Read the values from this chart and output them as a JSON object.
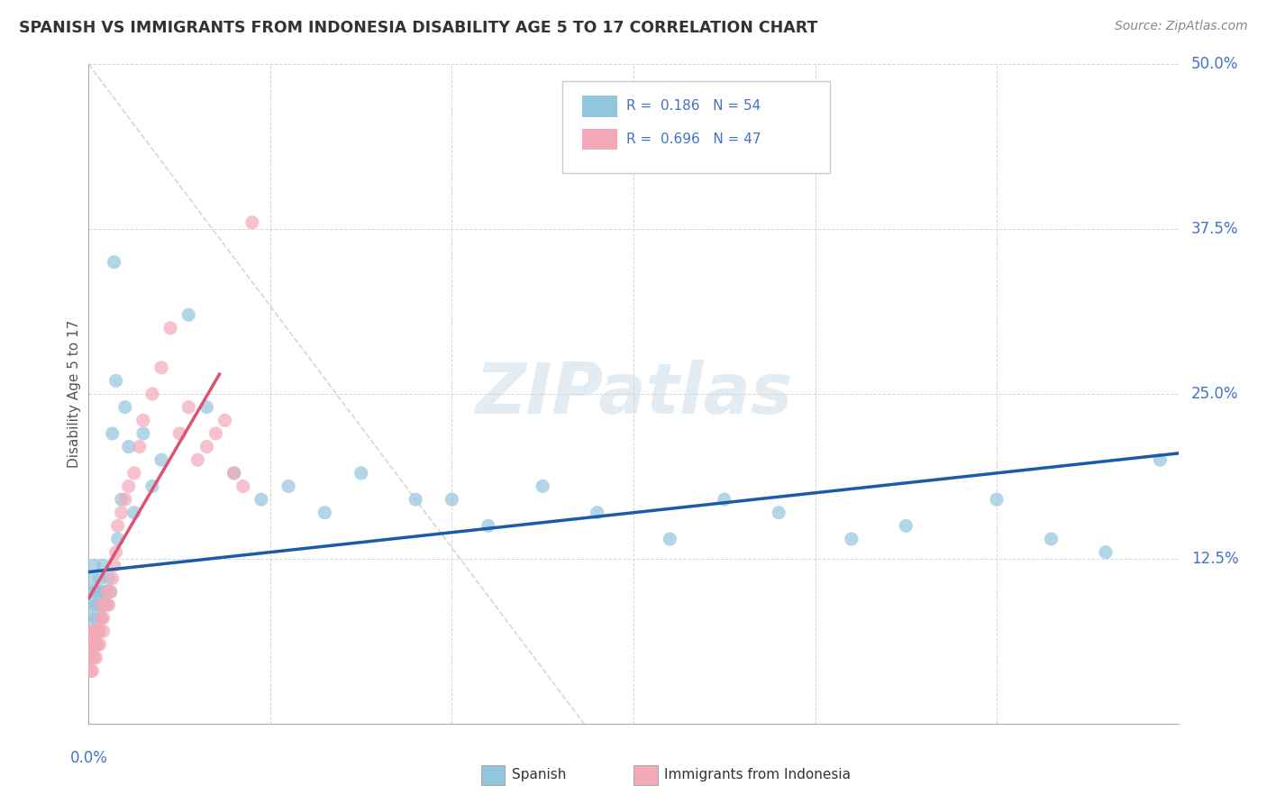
{
  "title": "SPANISH VS IMMIGRANTS FROM INDONESIA DISABILITY AGE 5 TO 17 CORRELATION CHART",
  "source": "Source: ZipAtlas.com",
  "ylabel": "Disability Age 5 to 17",
  "xmin": 0.0,
  "xmax": 0.6,
  "ymin": 0.0,
  "ymax": 0.5,
  "xticks": [
    0.0,
    0.1,
    0.2,
    0.3,
    0.4,
    0.5,
    0.6
  ],
  "yticks": [
    0.0,
    0.125,
    0.25,
    0.375,
    0.5
  ],
  "spanish_R": 0.186,
  "spanish_N": 54,
  "indonesia_R": 0.696,
  "indonesia_N": 47,
  "spanish_color": "#92c5de",
  "indonesia_color": "#f4a9b8",
  "spanish_line_color": "#1a5ca8",
  "indonesia_line_color": "#e05070",
  "watermark": "ZIPatlas",
  "background_color": "#ffffff",
  "legend_text_color": "#4472c4",
  "spanish_x": [
    0.001,
    0.001,
    0.002,
    0.002,
    0.002,
    0.003,
    0.003,
    0.003,
    0.004,
    0.004,
    0.005,
    0.005,
    0.006,
    0.006,
    0.007,
    0.007,
    0.008,
    0.008,
    0.009,
    0.01,
    0.011,
    0.012,
    0.013,
    0.014,
    0.015,
    0.016,
    0.018,
    0.02,
    0.022,
    0.025,
    0.03,
    0.035,
    0.04,
    0.055,
    0.065,
    0.08,
    0.095,
    0.11,
    0.13,
    0.15,
    0.18,
    0.2,
    0.22,
    0.25,
    0.28,
    0.32,
    0.35,
    0.38,
    0.42,
    0.45,
    0.5,
    0.53,
    0.56,
    0.59
  ],
  "spanish_y": [
    0.08,
    0.1,
    0.06,
    0.09,
    0.11,
    0.07,
    0.1,
    0.12,
    0.08,
    0.09,
    0.07,
    0.1,
    0.09,
    0.11,
    0.08,
    0.1,
    0.09,
    0.12,
    0.1,
    0.09,
    0.11,
    0.1,
    0.22,
    0.35,
    0.26,
    0.14,
    0.17,
    0.24,
    0.21,
    0.16,
    0.22,
    0.18,
    0.2,
    0.31,
    0.24,
    0.19,
    0.17,
    0.18,
    0.16,
    0.19,
    0.17,
    0.17,
    0.15,
    0.18,
    0.16,
    0.14,
    0.17,
    0.16,
    0.14,
    0.15,
    0.17,
    0.14,
    0.13,
    0.2
  ],
  "indonesia_x": [
    0.001,
    0.001,
    0.001,
    0.002,
    0.002,
    0.002,
    0.002,
    0.003,
    0.003,
    0.003,
    0.004,
    0.004,
    0.004,
    0.005,
    0.005,
    0.006,
    0.006,
    0.007,
    0.007,
    0.008,
    0.008,
    0.009,
    0.01,
    0.011,
    0.012,
    0.013,
    0.014,
    0.015,
    0.016,
    0.018,
    0.02,
    0.022,
    0.025,
    0.028,
    0.03,
    0.035,
    0.04,
    0.045,
    0.05,
    0.055,
    0.06,
    0.065,
    0.07,
    0.075,
    0.08,
    0.085,
    0.09
  ],
  "indonesia_y": [
    0.04,
    0.05,
    0.06,
    0.04,
    0.05,
    0.06,
    0.07,
    0.05,
    0.06,
    0.07,
    0.05,
    0.06,
    0.07,
    0.06,
    0.07,
    0.06,
    0.07,
    0.08,
    0.09,
    0.07,
    0.08,
    0.09,
    0.1,
    0.09,
    0.1,
    0.11,
    0.12,
    0.13,
    0.15,
    0.16,
    0.17,
    0.18,
    0.19,
    0.21,
    0.23,
    0.25,
    0.27,
    0.3,
    0.22,
    0.24,
    0.2,
    0.21,
    0.22,
    0.23,
    0.19,
    0.18,
    0.38
  ],
  "indonesia_line_x": [
    0.0,
    0.072
  ],
  "indonesia_line_y": [
    0.095,
    0.265
  ],
  "spanish_line_x": [
    0.0,
    0.6
  ],
  "spanish_line_y": [
    0.115,
    0.205
  ]
}
